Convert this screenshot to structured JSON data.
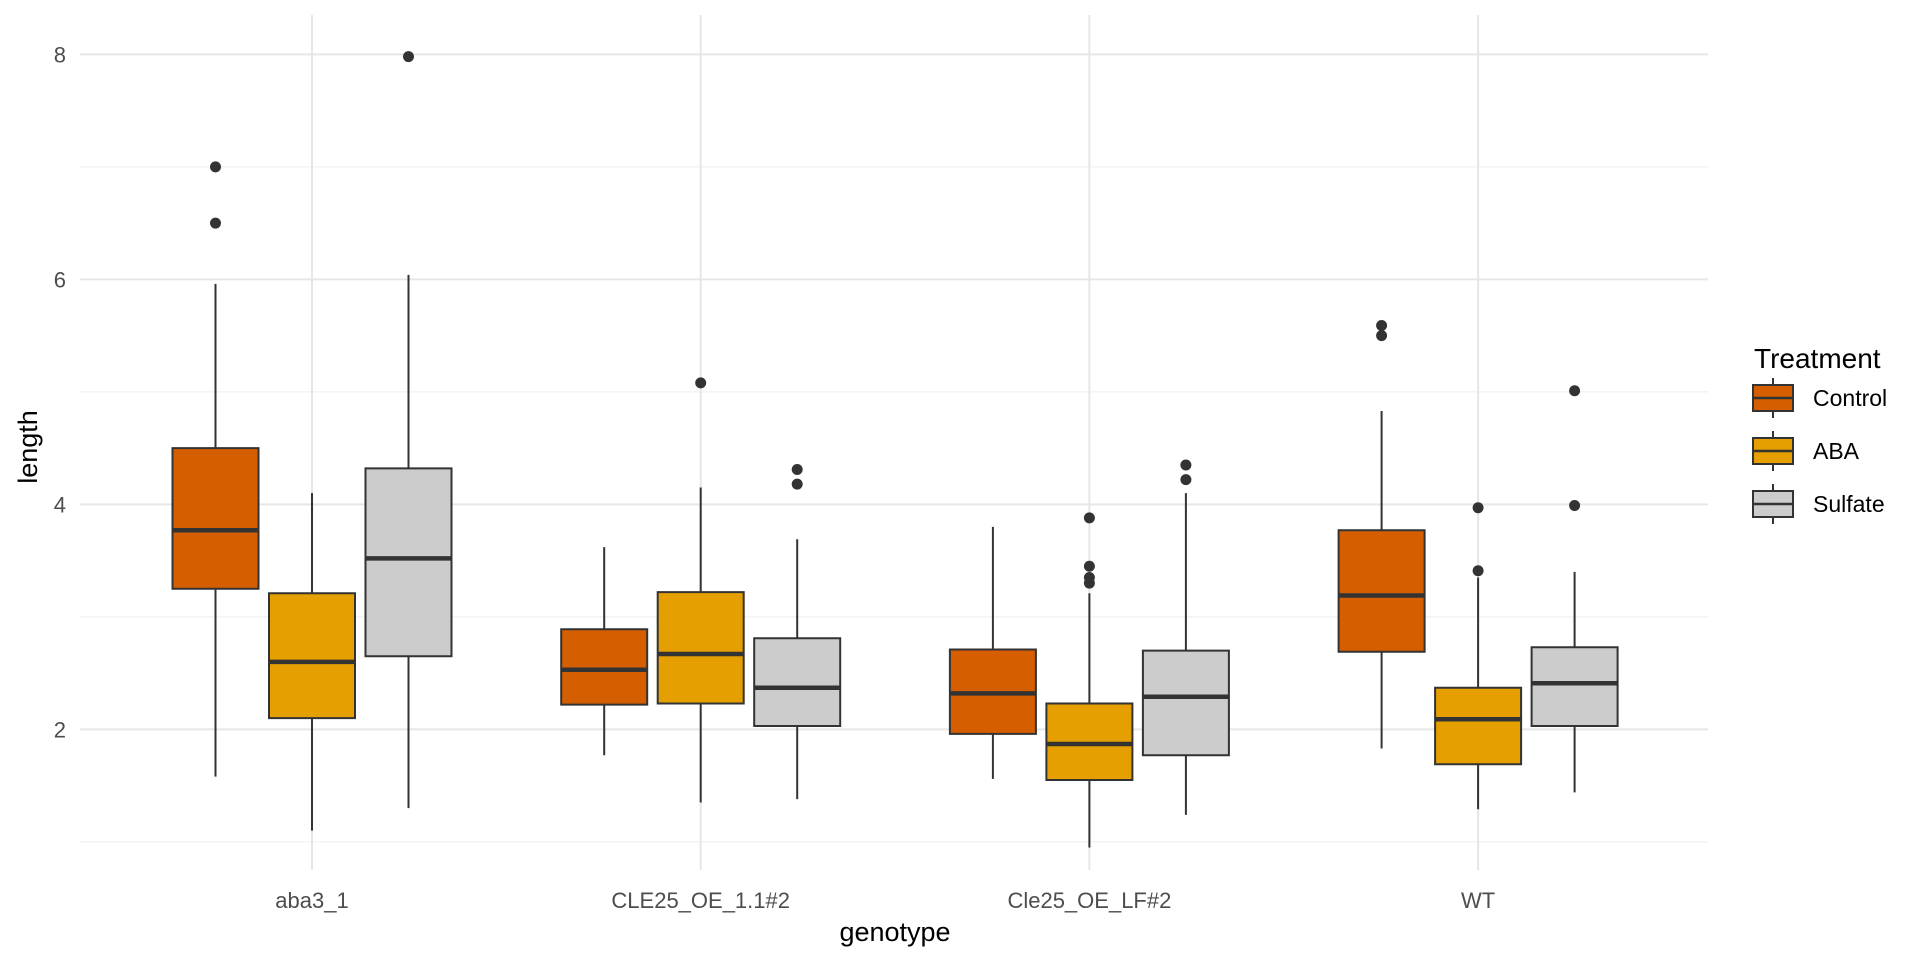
{
  "chart_data": {
    "type": "boxplot",
    "xlabel": "genotype",
    "ylabel": "length",
    "ylim": [
      0.75,
      8.35
    ],
    "y_ticks": [
      2,
      4,
      6,
      8
    ],
    "categories": [
      "aba3_1",
      "CLE25_OE_1.1#2",
      "Cle25_OE_LF#2",
      "WT"
    ],
    "grid": true,
    "legend": {
      "title": "Treatment",
      "position": "right"
    },
    "series": [
      {
        "name": "Control",
        "color": "#D55E00",
        "boxes": [
          {
            "min": 1.58,
            "q1": 3.25,
            "median": 3.77,
            "q3": 4.5,
            "max": 5.96,
            "outliers": [
              6.5,
              7.0
            ]
          },
          {
            "min": 1.77,
            "q1": 2.22,
            "median": 2.53,
            "q3": 2.89,
            "max": 3.62,
            "outliers": []
          },
          {
            "min": 1.56,
            "q1": 1.96,
            "median": 2.32,
            "q3": 2.71,
            "max": 3.8,
            "outliers": []
          },
          {
            "min": 1.83,
            "q1": 2.69,
            "median": 3.19,
            "q3": 3.77,
            "max": 4.83,
            "outliers": [
              5.5,
              5.59
            ]
          }
        ]
      },
      {
        "name": "ABA",
        "color": "#E69F00",
        "boxes": [
          {
            "min": 1.1,
            "q1": 2.1,
            "median": 2.6,
            "q3": 3.21,
            "max": 4.1,
            "outliers": []
          },
          {
            "min": 1.35,
            "q1": 2.23,
            "median": 2.67,
            "q3": 3.22,
            "max": 4.15,
            "outliers": [
              5.08
            ]
          },
          {
            "min": 0.95,
            "q1": 1.55,
            "median": 1.87,
            "q3": 2.23,
            "max": 3.21,
            "outliers": [
              3.3,
              3.35,
              3.45,
              3.88
            ]
          },
          {
            "min": 1.29,
            "q1": 1.69,
            "median": 2.09,
            "q3": 2.37,
            "max": 3.35,
            "outliers": [
              3.41,
              3.97
            ]
          }
        ]
      },
      {
        "name": "Sulfate",
        "color": "#CCCCCC",
        "boxes": [
          {
            "min": 1.3,
            "q1": 2.65,
            "median": 3.52,
            "q3": 4.32,
            "max": 6.04,
            "outliers": [
              7.98
            ]
          },
          {
            "min": 1.38,
            "q1": 2.03,
            "median": 2.37,
            "q3": 2.81,
            "max": 3.69,
            "outliers": [
              4.18,
              4.31
            ]
          },
          {
            "min": 1.24,
            "q1": 1.77,
            "median": 2.29,
            "q3": 2.7,
            "max": 4.1,
            "outliers": [
              4.22,
              4.35
            ]
          },
          {
            "min": 1.44,
            "q1": 2.03,
            "median": 2.41,
            "q3": 2.73,
            "max": 3.4,
            "outliers": [
              3.99,
              5.01
            ]
          }
        ]
      }
    ]
  }
}
